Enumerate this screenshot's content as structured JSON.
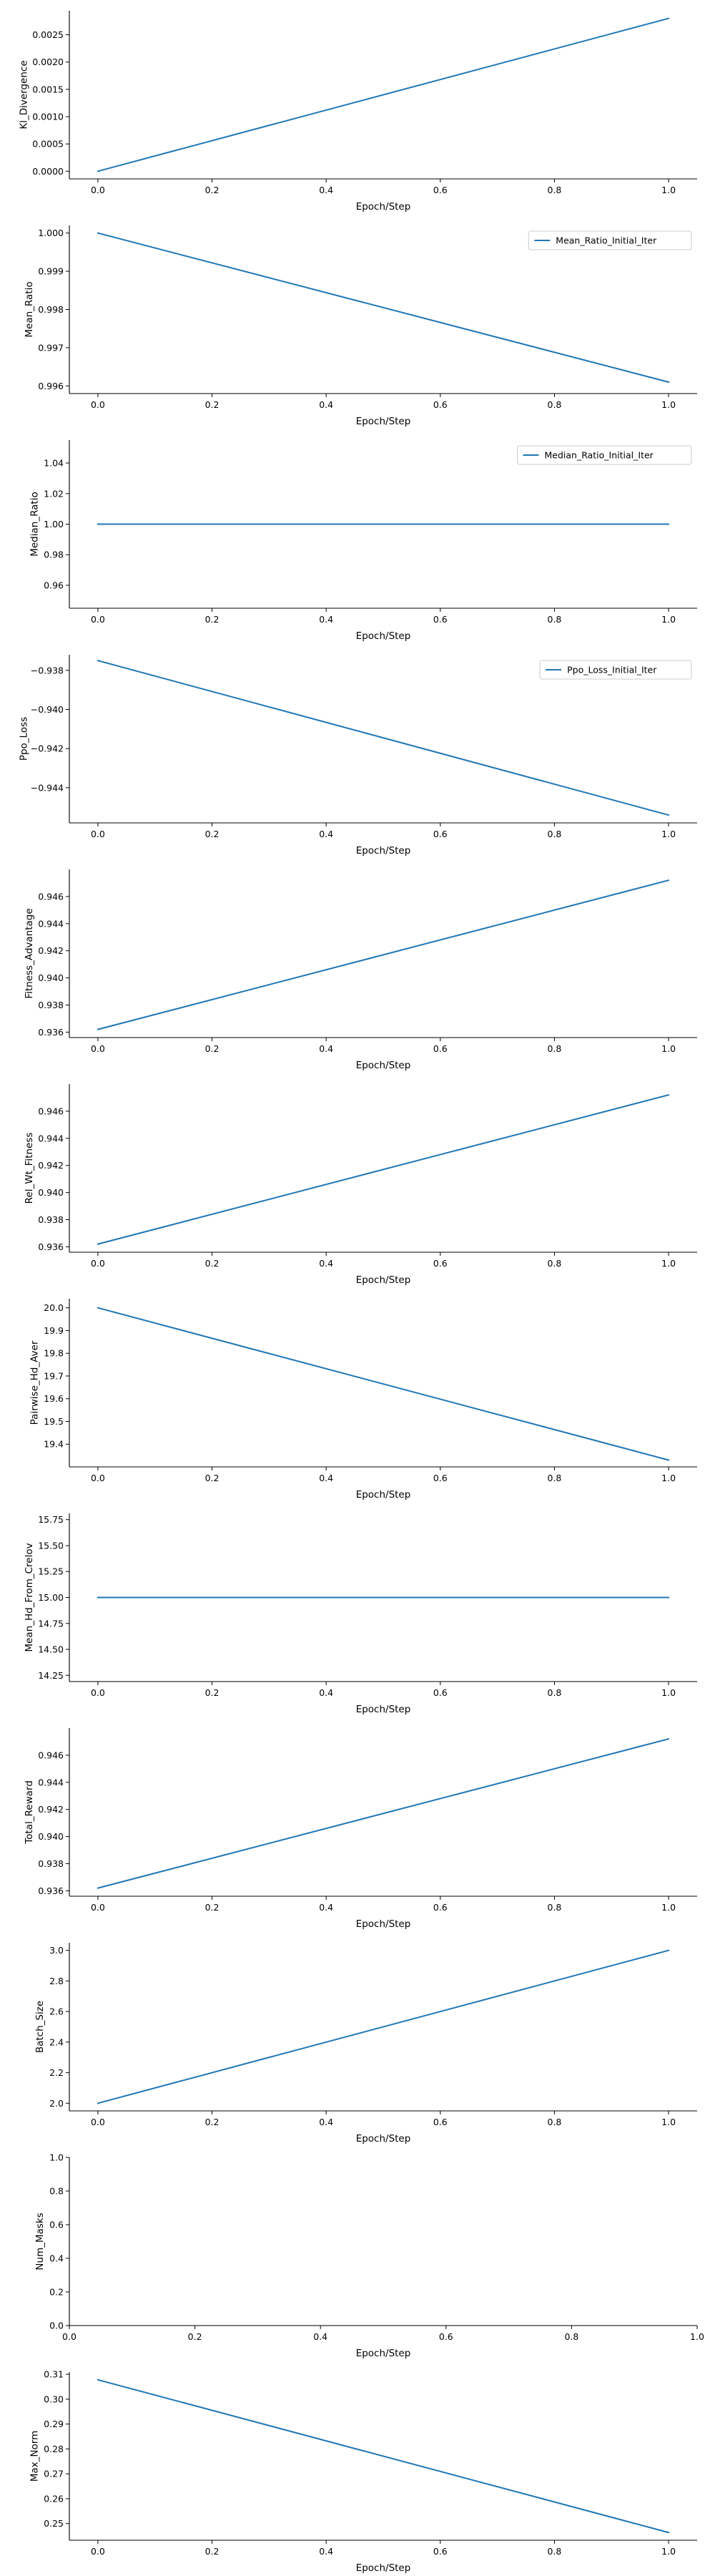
{
  "style": {
    "line_color": "#1f77b4",
    "axis_color": "#000000",
    "legend_border": "#cccccc"
  },
  "chart_data": [
    {
      "type": "line",
      "xlabel": "Epoch/Step",
      "ylabel": "Kl_Divergence",
      "xlim": [
        -0.05,
        1.05
      ],
      "ylim": [
        -0.00014,
        0.00294
      ],
      "xticks": [
        0.0,
        0.2,
        0.4,
        0.6,
        0.8,
        1.0
      ],
      "xtick_labels": [
        "0.0",
        "0.2",
        "0.4",
        "0.6",
        "0.8",
        "1.0"
      ],
      "yticks": [
        0.0,
        0.0005,
        0.001,
        0.0015,
        0.002,
        0.0025
      ],
      "ytick_labels": [
        "0.0000",
        "0.0005",
        "0.0010",
        "0.0015",
        "0.0020",
        "0.0025"
      ],
      "series": [
        {
          "x": [
            0.0,
            1.0
          ],
          "y": [
            0.0,
            0.0028
          ]
        }
      ],
      "legend": null
    },
    {
      "type": "line",
      "xlabel": "Epoch/Step",
      "ylabel": "Mean_Ratio",
      "xlim": [
        -0.05,
        1.05
      ],
      "ylim": [
        0.9958,
        1.0002
      ],
      "xticks": [
        0.0,
        0.2,
        0.4,
        0.6,
        0.8,
        1.0
      ],
      "xtick_labels": [
        "0.0",
        "0.2",
        "0.4",
        "0.6",
        "0.8",
        "1.0"
      ],
      "yticks": [
        0.996,
        0.997,
        0.998,
        0.999,
        1.0
      ],
      "ytick_labels": [
        "0.996",
        "0.997",
        "0.998",
        "0.999",
        "1.000"
      ],
      "series": [
        {
          "name": "Mean_Ratio_Initial_Iter",
          "x": [
            0.0,
            1.0
          ],
          "y": [
            1.0,
            0.9961
          ]
        }
      ],
      "legend": "upper right"
    },
    {
      "type": "line",
      "xlabel": "Epoch/Step",
      "ylabel": "Median_Ratio",
      "xlim": [
        -0.05,
        1.05
      ],
      "ylim": [
        0.945,
        1.055
      ],
      "xticks": [
        0.0,
        0.2,
        0.4,
        0.6,
        0.8,
        1.0
      ],
      "xtick_labels": [
        "0.0",
        "0.2",
        "0.4",
        "0.6",
        "0.8",
        "1.0"
      ],
      "yticks": [
        0.96,
        0.98,
        1.0,
        1.02,
        1.04
      ],
      "ytick_labels": [
        "0.96",
        "0.98",
        "1.00",
        "1.02",
        "1.04"
      ],
      "series": [
        {
          "name": "Median_Ratio_Initial_Iter",
          "x": [
            0.0,
            1.0
          ],
          "y": [
            1.0,
            1.0
          ]
        }
      ],
      "legend": "upper right"
    },
    {
      "type": "line",
      "xlabel": "Epoch/Step",
      "ylabel": "Ppo_Loss",
      "xlim": [
        -0.05,
        1.05
      ],
      "ylim": [
        -0.9458,
        -0.9372
      ],
      "xticks": [
        0.0,
        0.2,
        0.4,
        0.6,
        0.8,
        1.0
      ],
      "xtick_labels": [
        "0.0",
        "0.2",
        "0.4",
        "0.6",
        "0.8",
        "1.0"
      ],
      "yticks": [
        -0.944,
        -0.942,
        -0.94,
        -0.938
      ],
      "ytick_labels": [
        "−0.944",
        "−0.942",
        "−0.940",
        "−0.938"
      ],
      "series": [
        {
          "name": "Ppo_Loss_Initial_Iter",
          "x": [
            0.0,
            1.0
          ],
          "y": [
            -0.9375,
            -0.9454
          ]
        }
      ],
      "legend": "upper right"
    },
    {
      "type": "line",
      "xlabel": "Epoch/Step",
      "ylabel": "Fitness_Advantage",
      "xlim": [
        -0.05,
        1.05
      ],
      "ylim": [
        0.9356,
        0.948
      ],
      "xticks": [
        0.0,
        0.2,
        0.4,
        0.6,
        0.8,
        1.0
      ],
      "xtick_labels": [
        "0.0",
        "0.2",
        "0.4",
        "0.6",
        "0.8",
        "1.0"
      ],
      "yticks": [
        0.936,
        0.938,
        0.94,
        0.942,
        0.944,
        0.946
      ],
      "ytick_labels": [
        "0.936",
        "0.938",
        "0.940",
        "0.942",
        "0.944",
        "0.946"
      ],
      "series": [
        {
          "x": [
            0.0,
            1.0
          ],
          "y": [
            0.9362,
            0.9472
          ]
        }
      ],
      "legend": null
    },
    {
      "type": "line",
      "xlabel": "Epoch/Step",
      "ylabel": "Rel_Wt_Fitness",
      "xlim": [
        -0.05,
        1.05
      ],
      "ylim": [
        0.9356,
        0.948
      ],
      "xticks": [
        0.0,
        0.2,
        0.4,
        0.6,
        0.8,
        1.0
      ],
      "xtick_labels": [
        "0.0",
        "0.2",
        "0.4",
        "0.6",
        "0.8",
        "1.0"
      ],
      "yticks": [
        0.936,
        0.938,
        0.94,
        0.942,
        0.944,
        0.946
      ],
      "ytick_labels": [
        "0.936",
        "0.938",
        "0.940",
        "0.942",
        "0.944",
        "0.946"
      ],
      "series": [
        {
          "x": [
            0.0,
            1.0
          ],
          "y": [
            0.9362,
            0.9472
          ]
        }
      ],
      "legend": null
    },
    {
      "type": "line",
      "xlabel": "Epoch/Step",
      "ylabel": "Pairwise_Hd_Aver",
      "xlim": [
        -0.05,
        1.05
      ],
      "ylim": [
        19.3,
        20.04
      ],
      "xticks": [
        0.0,
        0.2,
        0.4,
        0.6,
        0.8,
        1.0
      ],
      "xtick_labels": [
        "0.0",
        "0.2",
        "0.4",
        "0.6",
        "0.8",
        "1.0"
      ],
      "yticks": [
        19.4,
        19.5,
        19.6,
        19.7,
        19.8,
        19.9,
        20.0
      ],
      "ytick_labels": [
        "19.4",
        "19.5",
        "19.6",
        "19.7",
        "19.8",
        "19.9",
        "20.0"
      ],
      "series": [
        {
          "x": [
            0.0,
            1.0
          ],
          "y": [
            20.0,
            19.33
          ]
        }
      ],
      "legend": null
    },
    {
      "type": "line",
      "xlabel": "Epoch/Step",
      "ylabel": "Mean_Hd_From_Crelov",
      "xlim": [
        -0.05,
        1.05
      ],
      "ylim": [
        14.19,
        15.81
      ],
      "xticks": [
        0.0,
        0.2,
        0.4,
        0.6,
        0.8,
        1.0
      ],
      "xtick_labels": [
        "0.0",
        "0.2",
        "0.4",
        "0.6",
        "0.8",
        "1.0"
      ],
      "yticks": [
        14.25,
        14.5,
        14.75,
        15.0,
        15.25,
        15.5,
        15.75
      ],
      "ytick_labels": [
        "14.25",
        "14.50",
        "14.75",
        "15.00",
        "15.25",
        "15.50",
        "15.75"
      ],
      "series": [
        {
          "x": [
            0.0,
            1.0
          ],
          "y": [
            15.0,
            15.0
          ]
        }
      ],
      "legend": null
    },
    {
      "type": "line",
      "xlabel": "Epoch/Step",
      "ylabel": "Total_Reward",
      "xlim": [
        -0.05,
        1.05
      ],
      "ylim": [
        0.9356,
        0.948
      ],
      "xticks": [
        0.0,
        0.2,
        0.4,
        0.6,
        0.8,
        1.0
      ],
      "xtick_labels": [
        "0.0",
        "0.2",
        "0.4",
        "0.6",
        "0.8",
        "1.0"
      ],
      "yticks": [
        0.936,
        0.938,
        0.94,
        0.942,
        0.944,
        0.946
      ],
      "ytick_labels": [
        "0.936",
        "0.938",
        "0.940",
        "0.942",
        "0.944",
        "0.946"
      ],
      "series": [
        {
          "x": [
            0.0,
            1.0
          ],
          "y": [
            0.9362,
            0.9472
          ]
        }
      ],
      "legend": null
    },
    {
      "type": "line",
      "xlabel": "Epoch/Step",
      "ylabel": "Batch_Size",
      "xlim": [
        -0.05,
        1.05
      ],
      "ylim": [
        1.95,
        3.05
      ],
      "xticks": [
        0.0,
        0.2,
        0.4,
        0.6,
        0.8,
        1.0
      ],
      "xtick_labels": [
        "0.0",
        "0.2",
        "0.4",
        "0.6",
        "0.8",
        "1.0"
      ],
      "yticks": [
        2.0,
        2.2,
        2.4,
        2.6,
        2.8,
        3.0
      ],
      "ytick_labels": [
        "2.0",
        "2.2",
        "2.4",
        "2.6",
        "2.8",
        "3.0"
      ],
      "series": [
        {
          "x": [
            0.0,
            1.0
          ],
          "y": [
            2.0,
            3.0
          ]
        }
      ],
      "legend": null
    },
    {
      "type": "line",
      "xlabel": "Epoch/Step",
      "ylabel": "Num_Masks",
      "xlim": [
        0.0,
        1.0
      ],
      "ylim": [
        0.0,
        1.0
      ],
      "xticks": [
        0.0,
        0.2,
        0.4,
        0.6,
        0.8,
        1.0
      ],
      "xtick_labels": [
        "0.0",
        "0.2",
        "0.4",
        "0.6",
        "0.8",
        "1.0"
      ],
      "yticks": [
        0.0,
        0.2,
        0.4,
        0.6,
        0.8,
        1.0
      ],
      "ytick_labels": [
        "0.0",
        "0.2",
        "0.4",
        "0.6",
        "0.8",
        "1.0"
      ],
      "series": [],
      "legend": null
    },
    {
      "type": "line",
      "xlabel": "Epoch/Step",
      "ylabel": "Max_Norm",
      "xlim": [
        -0.05,
        1.05
      ],
      "ylim": [
        0.2433,
        0.3109
      ],
      "xticks": [
        0.0,
        0.2,
        0.4,
        0.6,
        0.8,
        1.0
      ],
      "xtick_labels": [
        "0.0",
        "0.2",
        "0.4",
        "0.6",
        "0.8",
        "1.0"
      ],
      "yticks": [
        0.25,
        0.26,
        0.27,
        0.28,
        0.29,
        0.3,
        0.31
      ],
      "ytick_labels": [
        "0.25",
        "0.26",
        "0.27",
        "0.28",
        "0.29",
        "0.30",
        "0.31"
      ],
      "series": [
        {
          "x": [
            0.0,
            1.0
          ],
          "y": [
            0.3078,
            0.2464
          ]
        }
      ],
      "legend": null
    }
  ]
}
